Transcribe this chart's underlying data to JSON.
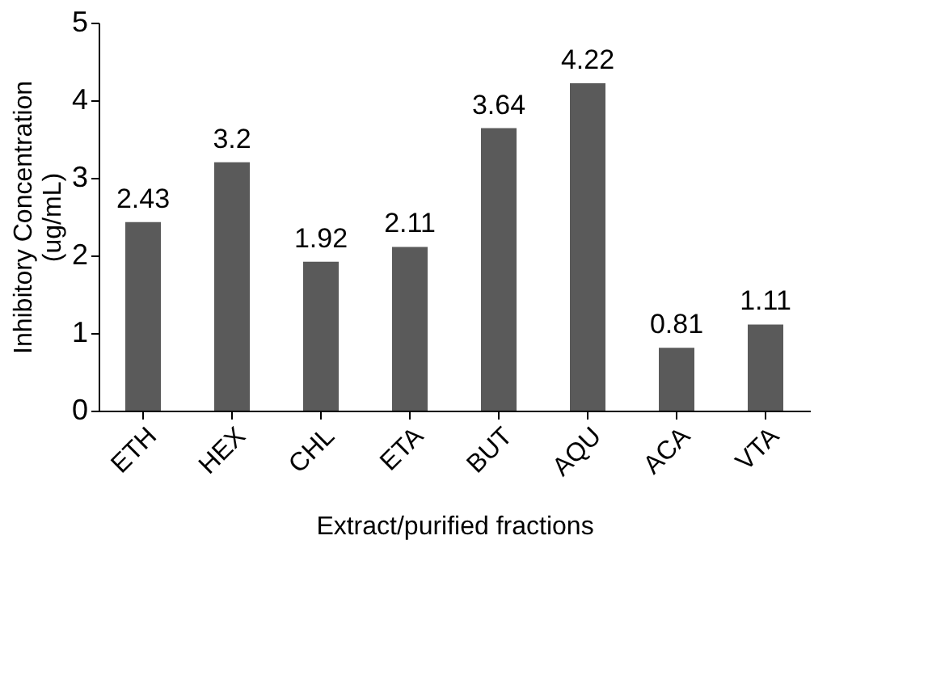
{
  "chart_data": {
    "type": "bar",
    "xlabel": "Extract/purified fractions",
    "ylabel": "Inhibitory Concentration (ug/mL)",
    "categories": [
      "ETH",
      "HEX",
      "CHL",
      "ETA",
      "BUT",
      "AQU",
      "ACA",
      "VTA"
    ],
    "values": [
      2.43,
      3.2,
      1.92,
      2.11,
      3.64,
      4.22,
      0.81,
      1.11
    ],
    "color": "#5a5a5a",
    "ylim": [
      0,
      5
    ],
    "yticks": [
      0,
      1,
      2,
      3,
      4,
      5
    ],
    "grid": false,
    "data_labels": true
  }
}
